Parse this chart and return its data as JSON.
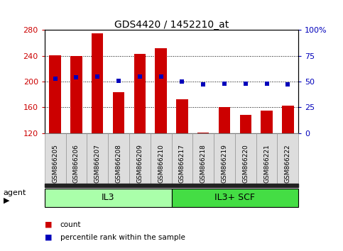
{
  "title": "GDS4420 / 1452210_at",
  "samples": [
    "GSM866205",
    "GSM866206",
    "GSM866207",
    "GSM866208",
    "GSM866209",
    "GSM866210",
    "GSM866217",
    "GSM866218",
    "GSM866219",
    "GSM866220",
    "GSM866221",
    "GSM866222"
  ],
  "counts": [
    241,
    240,
    275,
    183,
    243,
    252,
    172,
    121,
    160,
    148,
    155,
    163
  ],
  "percentile_ranks": [
    53,
    54,
    55,
    51,
    55,
    55,
    50,
    47,
    48,
    48,
    48,
    47
  ],
  "groups": [
    {
      "label": "IL3",
      "start": 0,
      "end": 5,
      "color": "#aaffaa"
    },
    {
      "label": "IL3+ SCF",
      "start": 6,
      "end": 11,
      "color": "#44dd44"
    }
  ],
  "ylim_left": [
    120,
    280
  ],
  "yticks_left": [
    120,
    160,
    200,
    240,
    280
  ],
  "ylim_right": [
    0,
    100
  ],
  "yticks_right": [
    0,
    25,
    50,
    75,
    100
  ],
  "bar_color": "#cc0000",
  "dot_color": "#0000bb",
  "bg_color": "#ffffff",
  "grid_color": "#000000",
  "tick_color_left": "#cc0000",
  "tick_color_right": "#0000bb",
  "bar_width": 0.55,
  "figsize": [
    4.83,
    3.54
  ],
  "dpi": 100
}
